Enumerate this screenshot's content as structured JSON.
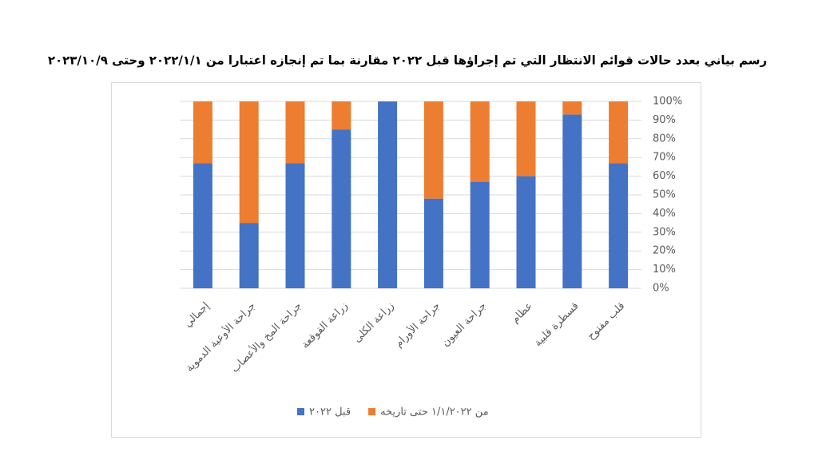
{
  "chart_data": {
    "type": "stacked_bar",
    "title": "رسم بياني بعدد حالات قوائم الانتظار التي تم إجراؤها قبل ٢٠٢٢ مقارنة بما تم إنجازه اعتبارا من ٢٠٢٢/١/١ وحتى ٢٠٢٣/١٠/٩",
    "categories": [
      "إجمالي",
      "جراحة الأوعية الدموية",
      "جراحة المخ والأعصاب",
      "زراعة القوقعة",
      "زراعة الكلى",
      "جراحة الأورام",
      "جراحة العيون",
      "عظام",
      "قسطرة قلبية",
      "قلب مفتوح"
    ],
    "series": [
      {
        "name": "قبل ٢٠٢٢",
        "color": "#4472c4",
        "values": [
          67,
          35,
          67,
          85,
          100,
          48,
          57,
          60,
          93,
          67
        ]
      },
      {
        "name": "من ١/١/٢٠٢٢ حتى تاريخه",
        "color": "#ed7d31",
        "values": [
          33,
          65,
          33,
          15,
          0,
          52,
          43,
          40,
          7,
          33
        ]
      }
    ],
    "ylim": [
      0,
      100
    ],
    "yticks": [
      {
        "value": 0,
        "label": "0%"
      },
      {
        "value": 10,
        "label": "10%"
      },
      {
        "value": 20,
        "label": "20%"
      },
      {
        "value": 30,
        "label": "30%"
      },
      {
        "value": 40,
        "label": "40%"
      },
      {
        "value": 50,
        "label": "50%"
      },
      {
        "value": 60,
        "label": "60%"
      },
      {
        "value": 70,
        "label": "70%"
      },
      {
        "value": 80,
        "label": "80%"
      },
      {
        "value": 90,
        "label": "90%"
      },
      {
        "value": 100,
        "label": "100%"
      }
    ],
    "grid": true
  }
}
